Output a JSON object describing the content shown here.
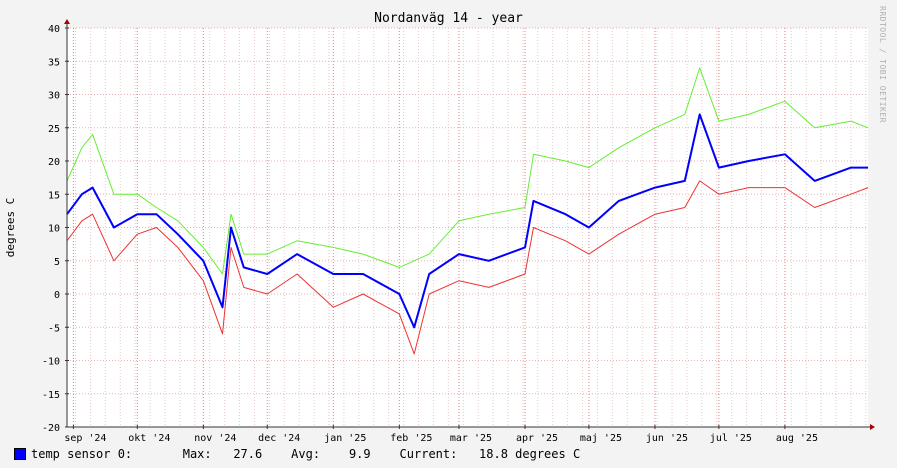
{
  "chart_data": {
    "type": "line",
    "title": "Nordanväg 14 - year",
    "ylabel": "degrees C",
    "ylim": [
      -20,
      40
    ],
    "yticks": [
      -20,
      -15,
      -10,
      -5,
      0,
      5,
      10,
      15,
      20,
      25,
      30,
      35,
      40
    ],
    "x_range": [
      "2024-08-29",
      "2025-09-09"
    ],
    "months": [
      {
        "label": "sep '24",
        "date": "2024-09-01"
      },
      {
        "label": "okt '24",
        "date": "2024-10-01"
      },
      {
        "label": "nov '24",
        "date": "2024-11-01"
      },
      {
        "label": "dec '24",
        "date": "2024-12-01"
      },
      {
        "label": "jan '25",
        "date": "2025-01-01"
      },
      {
        "label": "feb '25",
        "date": "2025-02-01"
      },
      {
        "label": "mar '25",
        "date": "2025-03-01"
      },
      {
        "label": "apr '25",
        "date": "2025-04-01"
      },
      {
        "label": "maj '25",
        "date": "2025-05-01"
      },
      {
        "label": "jun '25",
        "date": "2025-06-01"
      },
      {
        "label": "jul '25",
        "date": "2025-07-01"
      },
      {
        "label": "aug '25",
        "date": "2025-08-01"
      }
    ],
    "grid": true,
    "series": [
      {
        "name": "temp sensor 0 max",
        "color": "#66ee33",
        "values": [
          {
            "date": "2024-08-29",
            "value": 17
          },
          {
            "date": "2024-09-05",
            "value": 22
          },
          {
            "date": "2024-09-10",
            "value": 24
          },
          {
            "date": "2024-09-20",
            "value": 15
          },
          {
            "date": "2024-10-01",
            "value": 15
          },
          {
            "date": "2024-10-10",
            "value": 13
          },
          {
            "date": "2024-10-20",
            "value": 11
          },
          {
            "date": "2024-11-01",
            "value": 7
          },
          {
            "date": "2024-11-10",
            "value": 3
          },
          {
            "date": "2024-11-14",
            "value": 12
          },
          {
            "date": "2024-11-20",
            "value": 6
          },
          {
            "date": "2024-12-01",
            "value": 6
          },
          {
            "date": "2024-12-15",
            "value": 8
          },
          {
            "date": "2025-01-01",
            "value": 7
          },
          {
            "date": "2025-01-15",
            "value": 6
          },
          {
            "date": "2025-02-01",
            "value": 4
          },
          {
            "date": "2025-02-15",
            "value": 6
          },
          {
            "date": "2025-03-01",
            "value": 11
          },
          {
            "date": "2025-03-15",
            "value": 12
          },
          {
            "date": "2025-04-01",
            "value": 13
          },
          {
            "date": "2025-04-05",
            "value": 21
          },
          {
            "date": "2025-04-20",
            "value": 20
          },
          {
            "date": "2025-05-01",
            "value": 19
          },
          {
            "date": "2025-05-15",
            "value": 22
          },
          {
            "date": "2025-06-01",
            "value": 25
          },
          {
            "date": "2025-06-15",
            "value": 27
          },
          {
            "date": "2025-06-22",
            "value": 34
          },
          {
            "date": "2025-07-01",
            "value": 26
          },
          {
            "date": "2025-07-15",
            "value": 27
          },
          {
            "date": "2025-08-01",
            "value": 29
          },
          {
            "date": "2025-08-15",
            "value": 25
          },
          {
            "date": "2025-09-01",
            "value": 26
          },
          {
            "date": "2025-09-09",
            "value": 25
          }
        ]
      },
      {
        "name": "temp sensor 0 avg",
        "color": "#0000ff",
        "values": [
          {
            "date": "2024-08-29",
            "value": 12
          },
          {
            "date": "2024-09-05",
            "value": 15
          },
          {
            "date": "2024-09-10",
            "value": 16
          },
          {
            "date": "2024-09-20",
            "value": 10
          },
          {
            "date": "2024-10-01",
            "value": 12
          },
          {
            "date": "2024-10-10",
            "value": 12
          },
          {
            "date": "2024-10-20",
            "value": 9
          },
          {
            "date": "2024-11-01",
            "value": 5
          },
          {
            "date": "2024-11-10",
            "value": -2
          },
          {
            "date": "2024-11-14",
            "value": 10
          },
          {
            "date": "2024-11-20",
            "value": 4
          },
          {
            "date": "2024-12-01",
            "value": 3
          },
          {
            "date": "2024-12-15",
            "value": 6
          },
          {
            "date": "2025-01-01",
            "value": 3
          },
          {
            "date": "2025-01-15",
            "value": 3
          },
          {
            "date": "2025-02-01",
            "value": 0
          },
          {
            "date": "2025-02-08",
            "value": -5
          },
          {
            "date": "2025-02-15",
            "value": 3
          },
          {
            "date": "2025-03-01",
            "value": 6
          },
          {
            "date": "2025-03-15",
            "value": 5
          },
          {
            "date": "2025-04-01",
            "value": 7
          },
          {
            "date": "2025-04-05",
            "value": 14
          },
          {
            "date": "2025-04-20",
            "value": 12
          },
          {
            "date": "2025-05-01",
            "value": 10
          },
          {
            "date": "2025-05-15",
            "value": 14
          },
          {
            "date": "2025-06-01",
            "value": 16
          },
          {
            "date": "2025-06-15",
            "value": 17
          },
          {
            "date": "2025-06-22",
            "value": 27
          },
          {
            "date": "2025-07-01",
            "value": 19
          },
          {
            "date": "2025-07-15",
            "value": 20
          },
          {
            "date": "2025-08-01",
            "value": 21
          },
          {
            "date": "2025-08-15",
            "value": 17
          },
          {
            "date": "2025-09-01",
            "value": 19
          },
          {
            "date": "2025-09-09",
            "value": 19
          }
        ]
      },
      {
        "name": "temp sensor 0 min",
        "color": "#ee3333",
        "values": [
          {
            "date": "2024-08-29",
            "value": 8
          },
          {
            "date": "2024-09-05",
            "value": 11
          },
          {
            "date": "2024-09-10",
            "value": 12
          },
          {
            "date": "2024-09-20",
            "value": 5
          },
          {
            "date": "2024-10-01",
            "value": 9
          },
          {
            "date": "2024-10-10",
            "value": 10
          },
          {
            "date": "2024-10-20",
            "value": 7
          },
          {
            "date": "2024-11-01",
            "value": 2
          },
          {
            "date": "2024-11-10",
            "value": -6
          },
          {
            "date": "2024-11-14",
            "value": 7
          },
          {
            "date": "2024-11-20",
            "value": 1
          },
          {
            "date": "2024-12-01",
            "value": 0
          },
          {
            "date": "2024-12-15",
            "value": 3
          },
          {
            "date": "2025-01-01",
            "value": -2
          },
          {
            "date": "2025-01-15",
            "value": 0
          },
          {
            "date": "2025-02-01",
            "value": -3
          },
          {
            "date": "2025-02-08",
            "value": -9
          },
          {
            "date": "2025-02-15",
            "value": 0
          },
          {
            "date": "2025-03-01",
            "value": 2
          },
          {
            "date": "2025-03-15",
            "value": 1
          },
          {
            "date": "2025-04-01",
            "value": 3
          },
          {
            "date": "2025-04-05",
            "value": 10
          },
          {
            "date": "2025-04-20",
            "value": 8
          },
          {
            "date": "2025-05-01",
            "value": 6
          },
          {
            "date": "2025-05-15",
            "value": 9
          },
          {
            "date": "2025-06-01",
            "value": 12
          },
          {
            "date": "2025-06-15",
            "value": 13
          },
          {
            "date": "2025-06-22",
            "value": 17
          },
          {
            "date": "2025-07-01",
            "value": 15
          },
          {
            "date": "2025-07-15",
            "value": 16
          },
          {
            "date": "2025-08-01",
            "value": 16
          },
          {
            "date": "2025-08-15",
            "value": 13
          },
          {
            "date": "2025-09-01",
            "value": 15
          },
          {
            "date": "2025-09-09",
            "value": 16
          }
        ]
      }
    ]
  },
  "credit": "RRDTOOL / TOBI OETIKER",
  "legend": {
    "label": "temp sensor 0:",
    "max_label": "Max:",
    "max_value": "27.6",
    "avg_label": "Avg:",
    "avg_value": "9.9",
    "current_label": "Current:",
    "current_value": "18.8 degrees C",
    "swatch_color": "#0000ff"
  }
}
